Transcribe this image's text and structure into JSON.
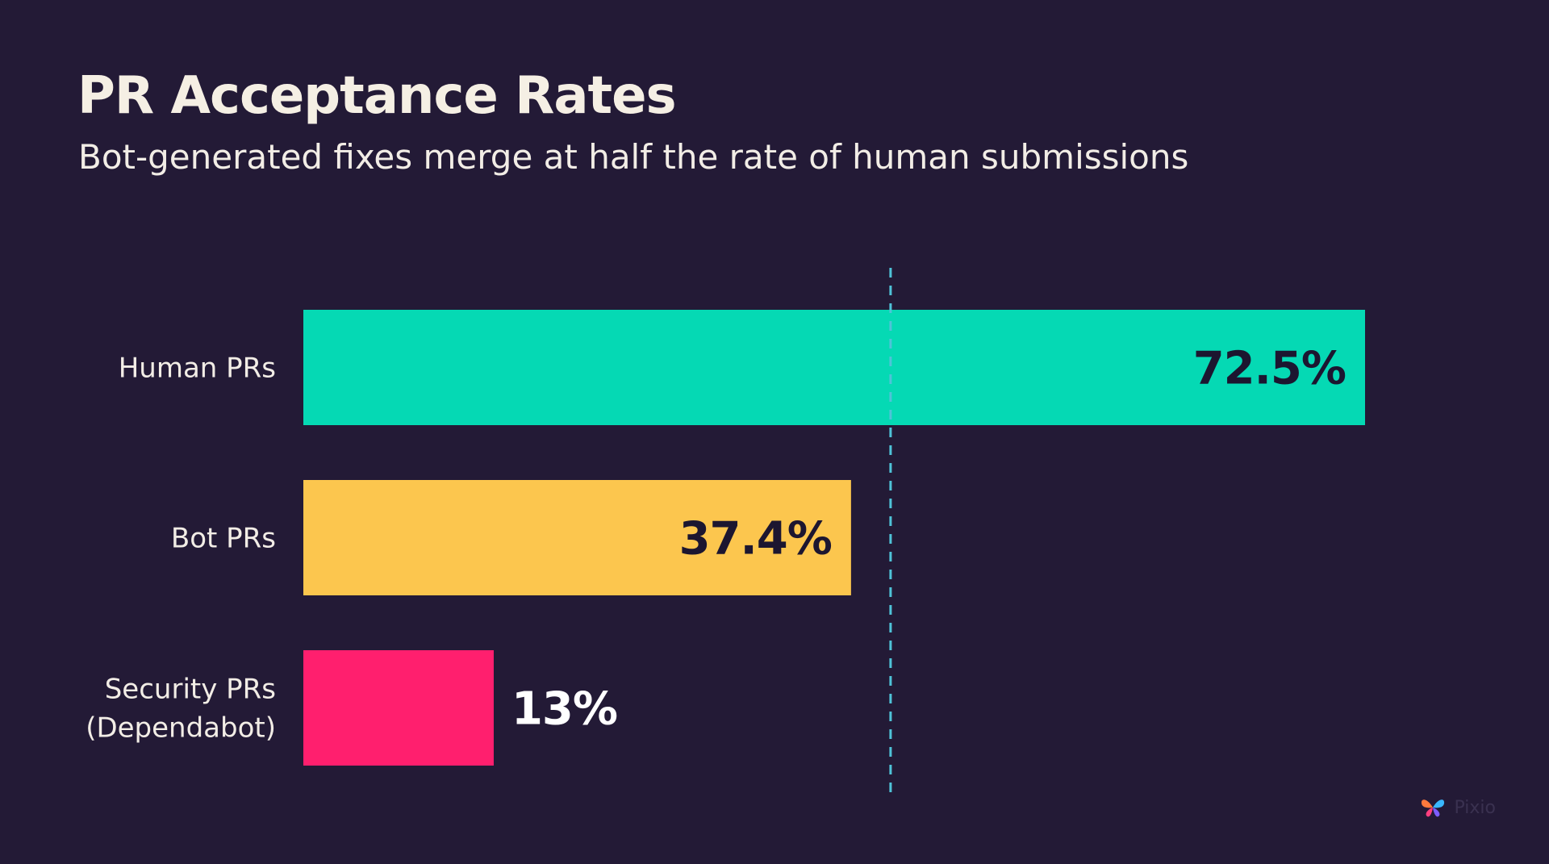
{
  "colors": {
    "background": "#231a36",
    "text": "#f2ede6",
    "reference_line": "#4fc3d8",
    "value_text_dark": "#1c1630",
    "value_text_light": "#ffffff"
  },
  "chart_data": {
    "type": "bar",
    "orientation": "horizontal",
    "title": "PR Acceptance Rates",
    "subtitle": "Bot-generated fixes merge at half the rate of human submissions",
    "categories": [
      [
        "Human PRs"
      ],
      [
        "Bot PRs"
      ],
      [
        "Security PRs",
        "(Dependabot)"
      ]
    ],
    "values": [
      72.5,
      37.4,
      13
    ],
    "value_labels": [
      "72.5%",
      "37.4%",
      "13%"
    ],
    "colors": [
      "#05d9b4",
      "#fcc64e",
      "#ff1f6e"
    ],
    "xlim": [
      0,
      72.5
    ],
    "reference_line": 40.1,
    "grid": false,
    "legend": "none"
  },
  "logo": {
    "icon": "butterfly-logo-icon",
    "text": "Pixio"
  }
}
